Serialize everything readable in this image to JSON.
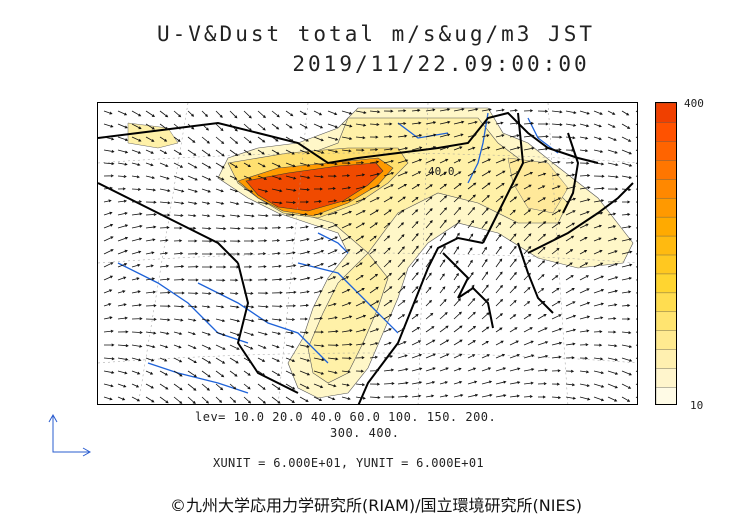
{
  "title": {
    "line1": "U-V&Dust total m/s&ug/m3 JST",
    "line2": "2019/11/22.09:00:00"
  },
  "map": {
    "contour_label": "40.0"
  },
  "colorbar": {
    "max_label": "400",
    "min_label": "10",
    "colors": [
      "#fffbe6",
      "#fff5cc",
      "#fff0b0",
      "#ffea90",
      "#ffe470",
      "#ffdd50",
      "#ffd530",
      "#ffc820",
      "#ffba10",
      "#ffaa00",
      "#ff9900",
      "#ff8800",
      "#ff7600",
      "#ff6400",
      "#ff5200",
      "#f04000"
    ]
  },
  "levels": {
    "line1": "lev= 10.0 20.0 40.0 60.0 100. 150. 200.",
    "line2": "300. 400."
  },
  "units": "XUNIT = 6.000E+01, YUNIT = 6.000E+01",
  "copyright": "©九州大学応用力学研究所(RIAM)/国立環境研究所(NIES)"
}
